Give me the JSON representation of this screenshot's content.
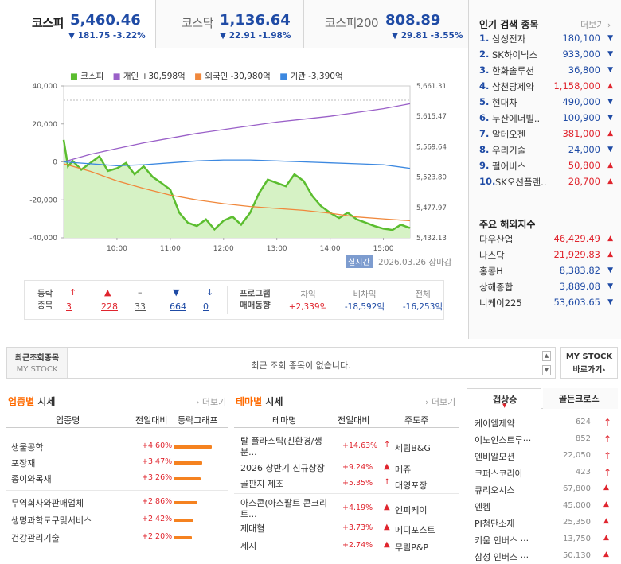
{
  "indices": [
    {
      "name": "코스피",
      "value": "5,460.46",
      "change": "▼ 181.75  -3.22%"
    },
    {
      "name": "코스닥",
      "value": "1,136.64",
      "change": "▼ 22.91  -1.98%"
    },
    {
      "name": "코스피200",
      "value": "808.89",
      "change": "▼ 29.81  -3.55%"
    }
  ],
  "legend": [
    {
      "label": "코스피",
      "color": "#5bbd2f"
    },
    {
      "label": "개인 +30,598억",
      "color": "#9a60c8"
    },
    {
      "label": "외국인 -30,980억",
      "color": "#f0883c"
    },
    {
      "label": "기관 -3,390억",
      "color": "#3c88e0"
    }
  ],
  "chart_data": {
    "type": "line",
    "y_left_ticks": [
      "40,000",
      "20,000",
      "0",
      "-20,000",
      "-40,000"
    ],
    "y_right_ticks": [
      "5,661.31",
      "5,615.47",
      "5,569.64",
      "5,523.80",
      "5,477.97",
      "5,432.13"
    ],
    "x_ticks": [
      "10:00",
      "11:00",
      "12:00",
      "13:00",
      "14:00",
      "15:00"
    ],
    "x_range": [
      "09:00",
      "15:30"
    ],
    "ylim_left": [
      -40000,
      40000
    ],
    "ylim_right": [
      5432.13,
      5661.31
    ],
    "series": [
      {
        "name": "코스피",
        "color": "#5bbd2f",
        "axis": "right",
        "points": [
          [
            9.0,
            5580
          ],
          [
            9.08,
            5540
          ],
          [
            9.17,
            5548
          ],
          [
            9.33,
            5535
          ],
          [
            9.5,
            5545
          ],
          [
            9.67,
            5555
          ],
          [
            9.83,
            5533
          ],
          [
            10.0,
            5537
          ],
          [
            10.17,
            5545
          ],
          [
            10.33,
            5528
          ],
          [
            10.5,
            5540
          ],
          [
            10.67,
            5524
          ],
          [
            10.83,
            5515
          ],
          [
            11.0,
            5505
          ],
          [
            11.17,
            5470
          ],
          [
            11.33,
            5455
          ],
          [
            11.5,
            5450
          ],
          [
            11.67,
            5460
          ],
          [
            11.83,
            5445
          ],
          [
            12.0,
            5458
          ],
          [
            12.17,
            5464
          ],
          [
            12.33,
            5452
          ],
          [
            12.5,
            5470
          ],
          [
            12.67,
            5500
          ],
          [
            12.83,
            5520
          ],
          [
            13.0,
            5515
          ],
          [
            13.17,
            5510
          ],
          [
            13.33,
            5528
          ],
          [
            13.5,
            5518
          ],
          [
            13.67,
            5495
          ],
          [
            13.83,
            5480
          ],
          [
            14.0,
            5470
          ],
          [
            14.17,
            5462
          ],
          [
            14.33,
            5470
          ],
          [
            14.5,
            5460
          ],
          [
            14.67,
            5455
          ],
          [
            14.83,
            5450
          ],
          [
            15.0,
            5446
          ],
          [
            15.17,
            5444
          ],
          [
            15.33,
            5452
          ],
          [
            15.5,
            5447
          ]
        ]
      },
      {
        "name": "개인",
        "color": "#9a60c8",
        "axis": "left",
        "points": [
          [
            9.0,
            0
          ],
          [
            9.5,
            4000
          ],
          [
            10.0,
            7000
          ],
          [
            10.5,
            10000
          ],
          [
            11.0,
            12500
          ],
          [
            11.5,
            15000
          ],
          [
            12.0,
            17000
          ],
          [
            12.5,
            19000
          ],
          [
            13.0,
            21000
          ],
          [
            13.5,
            22500
          ],
          [
            14.0,
            24000
          ],
          [
            14.5,
            26000
          ],
          [
            15.0,
            28000
          ],
          [
            15.5,
            30598
          ]
        ]
      },
      {
        "name": "외국인",
        "color": "#f0883c",
        "axis": "left",
        "points": [
          [
            9.0,
            -1000
          ],
          [
            9.5,
            -5000
          ],
          [
            10.0,
            -10000
          ],
          [
            10.5,
            -14000
          ],
          [
            11.0,
            -17500
          ],
          [
            11.5,
            -20000
          ],
          [
            12.0,
            -22000
          ],
          [
            12.5,
            -23500
          ],
          [
            13.0,
            -24500
          ],
          [
            13.5,
            -25500
          ],
          [
            14.0,
            -27000
          ],
          [
            14.5,
            -29000
          ],
          [
            15.0,
            -30000
          ],
          [
            15.5,
            -30980
          ]
        ]
      },
      {
        "name": "기관",
        "color": "#3c88e0",
        "axis": "left",
        "points": [
          [
            9.0,
            0
          ],
          [
            9.5,
            -1000
          ],
          [
            10.0,
            -2000
          ],
          [
            10.5,
            -1500
          ],
          [
            11.0,
            -500
          ],
          [
            11.5,
            500
          ],
          [
            12.0,
            1000
          ],
          [
            12.5,
            1000
          ],
          [
            13.0,
            500
          ],
          [
            13.5,
            0
          ],
          [
            14.0,
            -500
          ],
          [
            14.5,
            -1000
          ],
          [
            15.0,
            -1500
          ],
          [
            15.5,
            -3390
          ]
        ]
      }
    ]
  },
  "chart_footer": {
    "badge": "실시간",
    "date": "2026.03.26",
    "status": "장마감"
  },
  "updown": {
    "title_line1": "등락",
    "title_line2": "종목",
    "items": [
      {
        "sym": "↑",
        "cls": "up",
        "count": "3"
      },
      {
        "sym": "▲",
        "cls": "up",
        "count": "228"
      },
      {
        "sym": "–",
        "cls": "eq",
        "count": "33"
      },
      {
        "sym": "▼",
        "cls": "dn",
        "count": "664"
      },
      {
        "sym": "↓",
        "cls": "dn",
        "count": "0"
      }
    ]
  },
  "program": {
    "title_line1": "프로그램",
    "title_line2": "매매동향",
    "cols": [
      {
        "h": "차익",
        "v": "+2,339억",
        "cls": "up"
      },
      {
        "h": "비차익",
        "v": "-18,592억",
        "cls": "dn"
      },
      {
        "h": "전체",
        "v": "-16,253억",
        "cls": "dn"
      }
    ]
  },
  "hot": {
    "title": "인기 검색 종목",
    "more": "더보기",
    "items": [
      {
        "rank": "1.",
        "name": "삼성전자",
        "price": "180,100",
        "dir": "▼",
        "cls": "dn"
      },
      {
        "rank": "2.",
        "name": "SK하이닉스",
        "price": "933,000",
        "dir": "▼",
        "cls": "dn"
      },
      {
        "rank": "3.",
        "name": "한화솔루션",
        "price": "36,800",
        "dir": "▼",
        "cls": "dn"
      },
      {
        "rank": "4.",
        "name": "삼천당제약",
        "price": "1,158,000",
        "dir": "▲",
        "cls": "up"
      },
      {
        "rank": "5.",
        "name": "현대차",
        "price": "490,000",
        "dir": "▼",
        "cls": "dn"
      },
      {
        "rank": "6.",
        "name": "두산에너빌..",
        "price": "100,900",
        "dir": "▼",
        "cls": "dn"
      },
      {
        "rank": "7.",
        "name": "알테오젠",
        "price": "381,000",
        "dir": "▲",
        "cls": "up"
      },
      {
        "rank": "8.",
        "name": "우리기술",
        "price": "24,000",
        "dir": "▼",
        "cls": "dn"
      },
      {
        "rank": "9.",
        "name": "펄어비스",
        "price": "50,800",
        "dir": "▲",
        "cls": "up"
      },
      {
        "rank": "10.",
        "name": "SK오션플랜..",
        "price": "28,700",
        "dir": "▲",
        "cls": "up"
      }
    ]
  },
  "world": {
    "title": "주요 해외지수",
    "items": [
      {
        "name": "다우산업",
        "value": "46,429.49",
        "dir": "▲",
        "cls": "up"
      },
      {
        "name": "나스닥",
        "value": "21,929.83",
        "dir": "▲",
        "cls": "up"
      },
      {
        "name": "홍콩H",
        "value": "8,383.82",
        "dir": "▼",
        "cls": "dn"
      },
      {
        "name": "상해종합",
        "value": "3,889.08",
        "dir": "▼",
        "cls": "dn"
      },
      {
        "name": "니케이225",
        "value": "53,603.65",
        "dir": "▼",
        "cls": "dn"
      }
    ]
  },
  "recent": {
    "label1": "최근조회종목",
    "label2": "MY STOCK",
    "empty": "최근 조회 종목이 없습니다.",
    "btn1": "MY STOCK",
    "btn2": "바로가기"
  },
  "sector": {
    "title_a": "업종별",
    "title_b": " 시세",
    "more": "더보기",
    "cols": [
      "업종명",
      "전일대비",
      "등락그래프"
    ],
    "rows": [
      {
        "name": "생물공학",
        "chg": "+4.60%",
        "bar": 1.0
      },
      {
        "name": "포장재",
        "chg": "+3.47%",
        "bar": 0.75
      },
      {
        "name": "종이와목재",
        "chg": "+3.26%",
        "bar": 0.71
      },
      {
        "name": "무역회사와판매업체",
        "chg": "+2.86%",
        "bar": 0.62
      },
      {
        "name": "생명과학도구및서비스",
        "chg": "+2.42%",
        "bar": 0.53
      },
      {
        "name": "건강관리기술",
        "chg": "+2.20%",
        "bar": 0.48
      }
    ]
  },
  "theme": {
    "title_a": "테마별",
    "title_b": " 시세",
    "more": "더보기",
    "cols": [
      "테마명",
      "전일대비",
      "주도주"
    ],
    "rows": [
      {
        "name1": "탈 플라스틱(친환경/생",
        "name2": "분...",
        "chg": "+14.63%",
        "sym": "↑",
        "lead": "세림B&G"
      },
      {
        "name1": "2026 상반기 신규상장",
        "name2": "",
        "chg": "+9.24%",
        "sym": "▲",
        "lead": "메쥬"
      },
      {
        "name1": "골판지 제조",
        "name2": "",
        "chg": "+5.35%",
        "sym": "↑",
        "lead": "대영포장"
      },
      {
        "name1": "아스콘(아스팔트 콘크리",
        "name2": "트...",
        "chg": "+4.19%",
        "sym": "▲",
        "lead": "엔피케이"
      },
      {
        "name1": "제대혈",
        "name2": "",
        "chg": "+3.73%",
        "sym": "▲",
        "lead": "메디포스트"
      },
      {
        "name1": "제지",
        "name2": "",
        "chg": "+2.74%",
        "sym": "▲",
        "lead": "무림P&P"
      }
    ]
  },
  "rising": {
    "tab1": "갭상승",
    "tab2": "골든크로스",
    "rows": [
      {
        "name": "케이엠제약",
        "price": "624",
        "sym": "↑"
      },
      {
        "name": "이노인스트루···",
        "price": "852",
        "sym": "↑"
      },
      {
        "name": "엔비알모션",
        "price": "22,050",
        "sym": "↑"
      },
      {
        "name": "코퍼스코리아",
        "price": "423",
        "sym": "↑"
      },
      {
        "name": "큐리오시스",
        "price": "67,800",
        "sym": "▲"
      },
      {
        "name": "엔켐",
        "price": "45,000",
        "sym": "▲"
      },
      {
        "name": "PI첨단소재",
        "price": "25,350",
        "sym": "▲"
      },
      {
        "name": "키움 인버스 ···",
        "price": "13,750",
        "sym": "▲"
      },
      {
        "name": "삼성 인버스 ···",
        "price": "50,130",
        "sym": "▲"
      }
    ]
  }
}
